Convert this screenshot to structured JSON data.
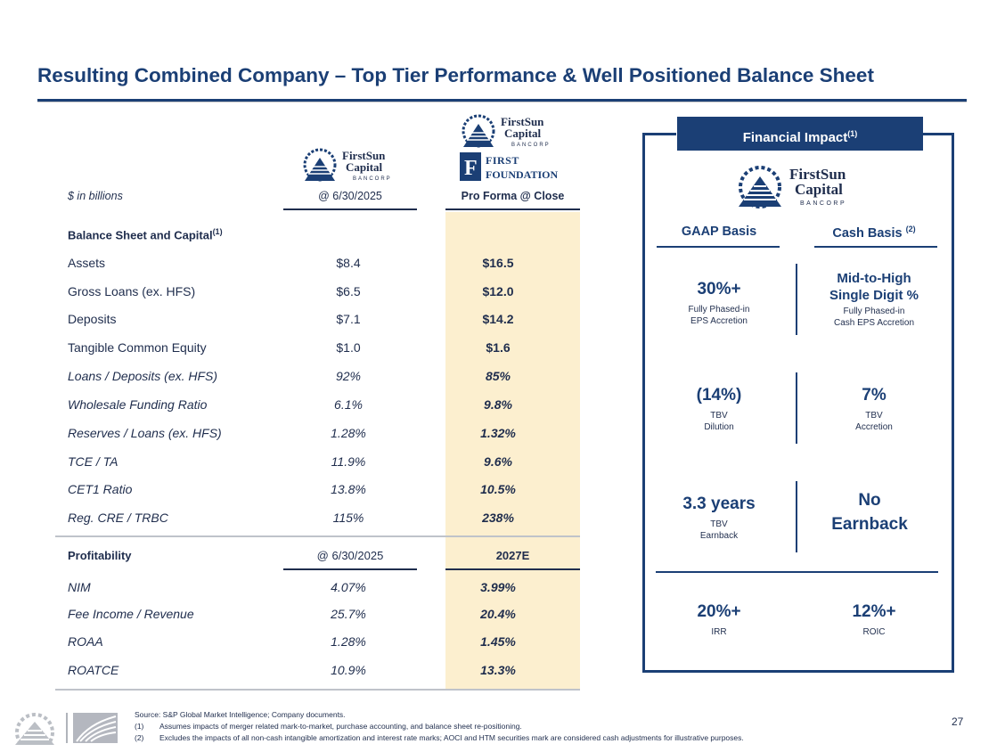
{
  "title": "Resulting Combined Company – Top Tier Performance & Well Positioned Balance Sheet",
  "logos": {
    "firstsun": {
      "line1": "FirstSun",
      "line2": "Capital",
      "line3": "BANCORP"
    },
    "firstfoundation": {
      "line1": "FIRST",
      "line2": "FOUNDATION"
    }
  },
  "table": {
    "units_label": "$ in billions",
    "col1_header": "@ 6/30/2025",
    "col2_header": "Pro Forma @ Close",
    "balance_header": "Balance Sheet and Capital",
    "balance_sup": "(1)",
    "balance_rows": [
      {
        "label": "Assets",
        "v1": "$8.4",
        "v2": "$16.5"
      },
      {
        "label": "Gross Loans (ex. HFS)",
        "v1": "$6.5",
        "v2": "$12.0"
      },
      {
        "label": "Deposits",
        "v1": "$7.1",
        "v2": "$14.2"
      },
      {
        "label": "Tangible Common Equity",
        "v1": "$1.0",
        "v2": "$1.6"
      },
      {
        "label": "Loans / Deposits (ex. HFS)",
        "v1": "92%",
        "v2": "85%"
      },
      {
        "label": "Wholesale Funding Ratio",
        "v1": "6.1%",
        "v2": "9.8%"
      },
      {
        "label": "Reserves / Loans (ex. HFS)",
        "v1": "1.28%",
        "v2": "1.32%"
      },
      {
        "label": "TCE / TA",
        "v1": "11.9%",
        "v2": "9.6%"
      },
      {
        "label": "CET1 Ratio",
        "v1": "13.8%",
        "v2": "10.5%"
      },
      {
        "label": "Reg. CRE / TRBC",
        "v1": "115%",
        "v2": "238%"
      }
    ],
    "profit_header": "Profitability",
    "profit_col1": "@ 6/30/2025",
    "profit_col2": "2027E",
    "profit_rows": [
      {
        "label": "NIM",
        "v1": "4.07%",
        "v2": "3.99%"
      },
      {
        "label": "Fee Income / Revenue",
        "v1": "25.7%",
        "v2": "20.4%"
      },
      {
        "label": "ROAA",
        "v1": "1.28%",
        "v2": "1.45%"
      },
      {
        "label": "ROATCE",
        "v1": "10.9%",
        "v2": "13.3%"
      }
    ]
  },
  "financial_impact": {
    "tab_label": "Financial Impact",
    "tab_sup": "(1)",
    "gaap_header": "GAAP Basis",
    "cash_header": "Cash Basis",
    "cash_sup": "(2)",
    "m1_left_value": "30%+",
    "m1_left_sub1": "Fully Phased-in",
    "m1_left_sub2": "EPS Accretion",
    "m1_right_value1": "Mid-to-High",
    "m1_right_value2": "Single Digit %",
    "m1_right_sub1": "Fully Phased-in",
    "m1_right_sub2": "Cash EPS Accretion",
    "m2_left_value": "(14%)",
    "m2_left_sub1": "TBV",
    "m2_left_sub2": "Dilution",
    "m2_right_value": "7%",
    "m2_right_sub1": "TBV",
    "m2_right_sub2": "Accretion",
    "m3_left_value": "3.3 years",
    "m3_left_sub1": "TBV",
    "m3_left_sub2": "Earnback",
    "m3_right_value1": "No",
    "m3_right_value2": "Earnback",
    "m4_left_value": "20%+",
    "m4_left_sub": "IRR",
    "m4_right_value": "12%+",
    "m4_right_sub": "ROIC"
  },
  "footnotes": {
    "source": "Source: S&P Global Market Intelligence; Company documents.",
    "n1_num": "(1)",
    "n1": "Assumes impacts of merger related mark-to-market, purchase accounting, and balance sheet re-positioning.",
    "n2_num": "(2)",
    "n2": "Excludes the impacts of all non-cash intangible amortization and interest rate marks; AOCI and HTM securities mark are considered cash adjustments for illustrative purposes."
  },
  "page_number": "27",
  "colors": {
    "navy": "#1b3f75",
    "pro_forma_bg": "#fcefcf"
  }
}
